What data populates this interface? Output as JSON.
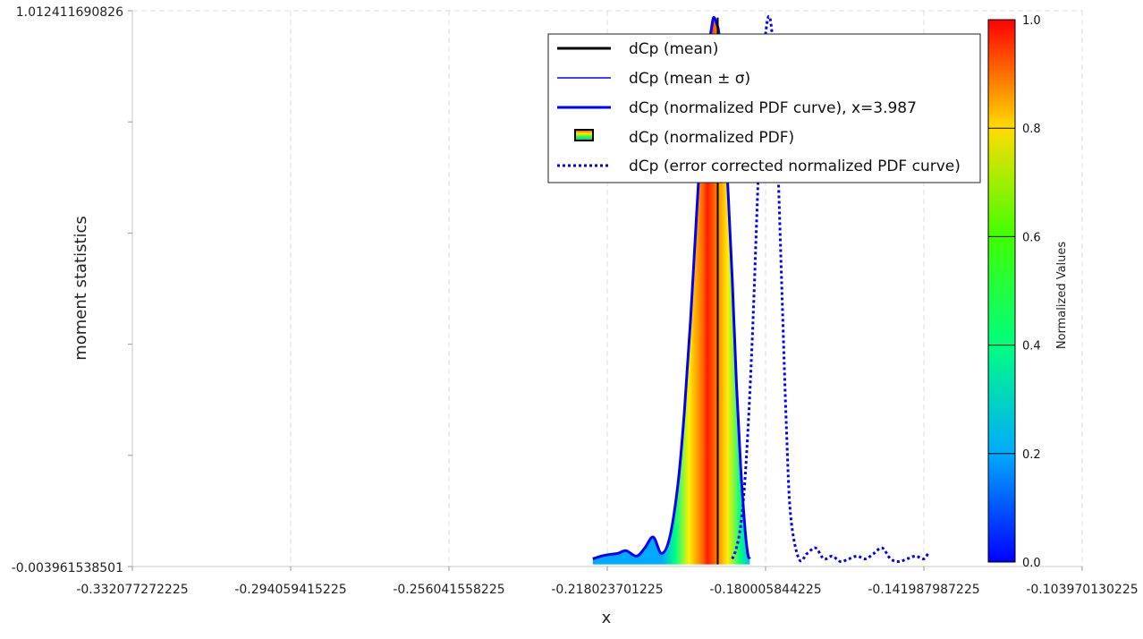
{
  "chart_data": {
    "type": "line",
    "xlabel": "x",
    "ylabel": "moment statistics",
    "xlim": [
      -0.332077272225,
      -0.103970130225
    ],
    "ylim": [
      -0.003961538501,
      1.012411690826
    ],
    "x_ticks": [
      "-0.332077272225",
      "-0.294059415225",
      "-0.256041558225",
      "-0.218023701225",
      "-0.180005844225",
      "-0.141987987225",
      "-0.103970130225"
    ],
    "y_ticks": [
      "1.012411690826",
      "-0.003961538501"
    ],
    "grid": true,
    "legend_position": "top-right",
    "legend": [
      {
        "label": "dCp (mean)"
      },
      {
        "label": "dCp (mean ± σ)"
      },
      {
        "label": "dCp (normalized PDF curve), x=3.987"
      },
      {
        "label": "dCp (normalized PDF)"
      },
      {
        "label": "dCp (error corrected normalized PDF curve)"
      }
    ],
    "series": [
      {
        "name": "dCp (normalized PDF curve), x=3.987",
        "color": "#0000ff",
        "x": [
          -0.2215,
          -0.2195,
          -0.2175,
          -0.2155,
          -0.2135,
          -0.211,
          -0.209,
          -0.207,
          -0.205,
          -0.203,
          -0.201,
          -0.1995,
          -0.198,
          -0.1965,
          -0.195,
          -0.194,
          -0.193,
          -0.1925,
          -0.1918,
          -0.1912,
          -0.1905,
          -0.1898,
          -0.189,
          -0.188,
          -0.187,
          -0.186,
          -0.185,
          -0.1843,
          -0.1838
        ],
        "values": [
          0.01,
          0.015,
          0.018,
          0.02,
          0.025,
          0.015,
          0.03,
          0.05,
          0.02,
          0.05,
          0.15,
          0.28,
          0.45,
          0.65,
          0.84,
          0.93,
          0.98,
          1.0,
          0.99,
          0.97,
          0.9,
          0.8,
          0.68,
          0.52,
          0.33,
          0.18,
          0.07,
          0.02,
          0.01
        ]
      },
      {
        "name": "dCp (error corrected normalized PDF curve)",
        "color": "#0000ff",
        "x": [
          -0.188,
          -0.187,
          -0.186,
          -0.185,
          -0.184,
          -0.183,
          -0.182,
          -0.181,
          -0.18,
          -0.179,
          -0.178,
          -0.177,
          -0.176,
          -0.175,
          -0.174,
          -0.172,
          -0.17,
          -0.168,
          -0.166,
          -0.164,
          -0.162,
          -0.16,
          -0.158,
          -0.156,
          -0.154,
          -0.152,
          -0.15,
          -0.148,
          -0.146,
          -0.144,
          -0.142,
          -0.141
        ],
        "values": [
          0.01,
          0.03,
          0.07,
          0.15,
          0.28,
          0.45,
          0.66,
          0.86,
          0.97,
          1.0,
          0.92,
          0.72,
          0.48,
          0.25,
          0.09,
          0.01,
          0.02,
          0.03,
          0.01,
          0.015,
          0.005,
          0.01,
          0.015,
          0.01,
          0.02,
          0.03,
          0.01,
          0.005,
          0.01,
          0.015,
          0.01,
          0.02
        ]
      }
    ],
    "mean_x": -0.1915,
    "colorbar": {
      "title": "Normalized Values",
      "range": [
        0.0,
        1.0
      ],
      "ticks": [
        "0.0",
        "0.2",
        "0.4",
        "0.6",
        "0.8",
        "1.0"
      ]
    }
  }
}
